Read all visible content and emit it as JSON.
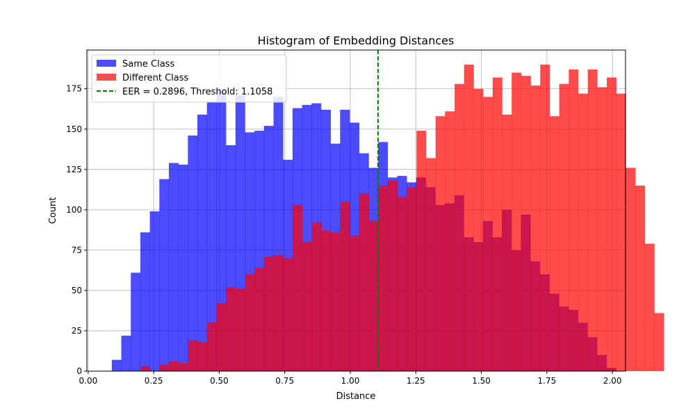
{
  "chart_data": {
    "type": "histogram",
    "title": "Histogram of Embedding Distances",
    "xlabel": "Distance",
    "ylabel": "Count",
    "xlim": [
      -0.005,
      2.05
    ],
    "ylim": [
      0,
      199
    ],
    "xticks": [
      "0.00",
      "0.25",
      "0.50",
      "0.75",
      "1.00",
      "1.25",
      "1.50",
      "1.75",
      "2.00"
    ],
    "yticks": [
      "0",
      "25",
      "50",
      "75",
      "100",
      "125",
      "150",
      "175"
    ],
    "grid": true,
    "legend_position": "upper-left",
    "series": [
      {
        "name": "Same Class",
        "color": "#0000ff",
        "alpha": 0.7,
        "bin_start": 0.09,
        "bin_width": 0.0363,
        "counts": [
          7,
          22,
          61,
          86,
          99,
          119,
          129,
          128,
          146,
          159,
          167,
          174,
          140,
          171,
          148,
          149,
          152,
          170,
          131,
          163,
          165,
          166,
          162,
          141,
          162,
          154,
          135,
          126,
          142,
          120,
          121,
          117,
          120,
          114,
          103,
          104,
          109,
          83,
          80,
          93,
          83,
          100,
          75,
          97,
          68,
          60,
          48,
          40,
          38,
          30,
          21,
          10,
          2
        ]
      },
      {
        "name": "Different Class",
        "color": "#ff0000",
        "alpha": 0.7,
        "bin_start": 0.2,
        "bin_width": 0.0363,
        "counts": [
          3,
          0,
          4,
          6,
          5,
          19,
          18,
          30,
          42,
          52,
          51,
          60,
          64,
          71,
          72,
          70,
          103,
          80,
          92,
          87,
          86,
          105,
          84,
          110,
          93,
          115,
          118,
          108,
          114,
          149,
          132,
          158,
          161,
          178,
          190,
          175,
          170,
          182,
          159,
          185,
          183,
          177,
          190,
          158,
          178,
          187,
          172,
          187,
          176,
          182,
          172,
          126,
          115,
          79,
          36
        ]
      }
    ],
    "threshold_line": {
      "label": "EER = 0.2896, Threshold: 1.1058",
      "x": 1.1058,
      "color": "#008000",
      "style": "dashed"
    }
  }
}
